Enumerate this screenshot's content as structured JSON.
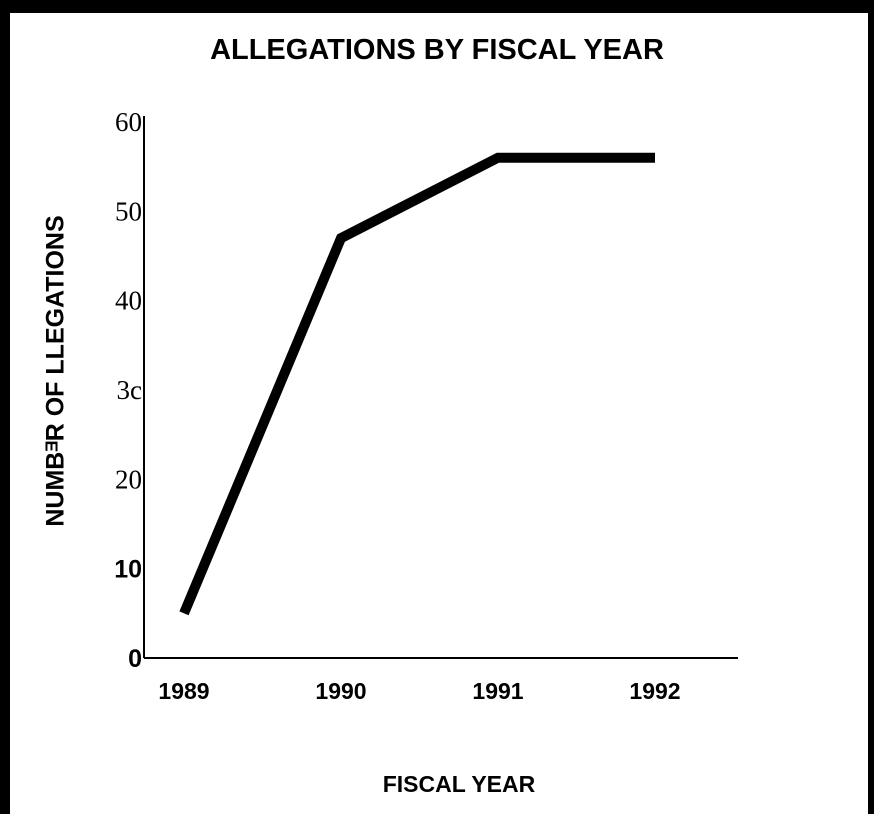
{
  "chart_data": {
    "type": "line",
    "title": "ALLEGATIONS BY FISCAL YEAR",
    "xlabel": "FISCAL YEAR",
    "ylabel": "NUMBᴲR OF   LLEGATIONS",
    "categories": [
      "1989",
      "1990",
      "1991",
      "1992"
    ],
    "series": [
      {
        "values": [
          5,
          47,
          56,
          56
        ]
      }
    ],
    "ylim": [
      0,
      60
    ],
    "yticks": [
      {
        "value": 0,
        "label": "0",
        "bold": true
      },
      {
        "value": 10,
        "label": "10",
        "bold": true
      },
      {
        "value": 20,
        "label": "20",
        "bold": false
      },
      {
        "value": 30,
        "label": "3c",
        "bold": false
      },
      {
        "value": 40,
        "label": "40",
        "bold": false
      },
      {
        "value": 50,
        "label": "50",
        "bold": false
      },
      {
        "value": 60,
        "label": "60",
        "bold": false
      }
    ],
    "grid": false,
    "line_color": "#000000"
  }
}
